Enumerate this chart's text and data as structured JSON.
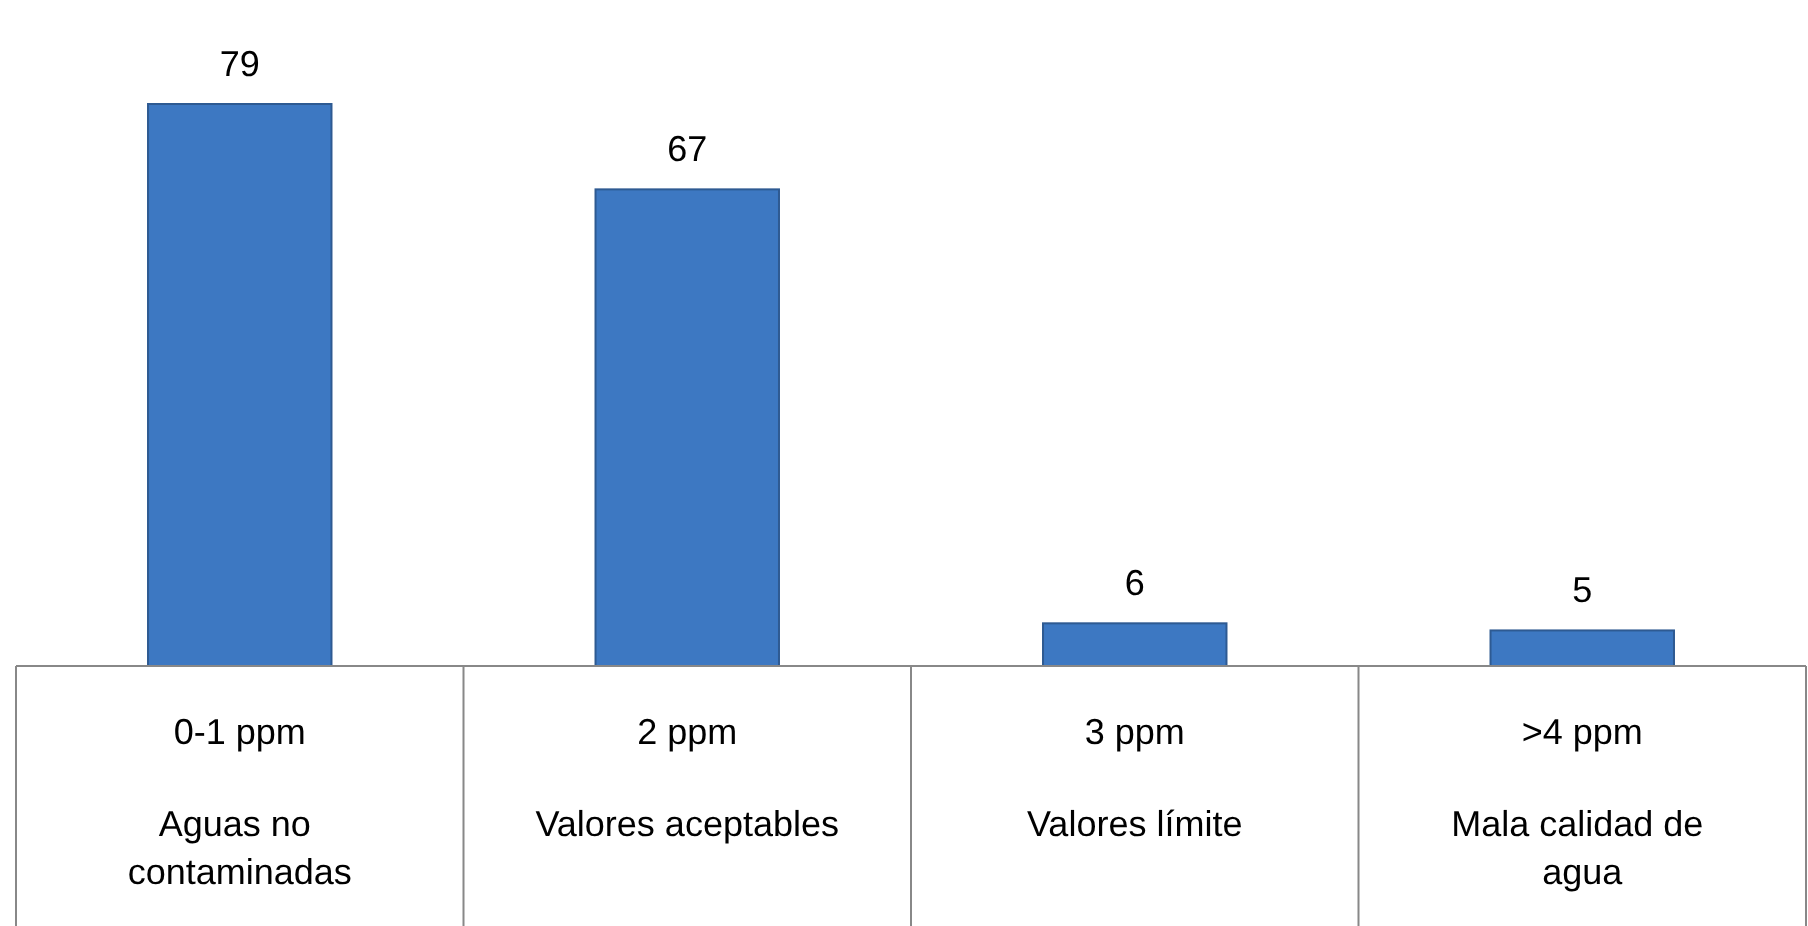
{
  "chart_data": {
    "type": "bar",
    "categories": [
      "0-1 ppm",
      "2 ppm",
      "3 ppm",
      ">4 ppm"
    ],
    "values": [
      79,
      67,
      6,
      5
    ],
    "color": "#3d78c2",
    "data_labels": true,
    "annotations": [
      "Aguas no\ncontaminadas",
      "Valores aceptables",
      "Valores límite",
      "Mala calidad de\nagua"
    ]
  }
}
